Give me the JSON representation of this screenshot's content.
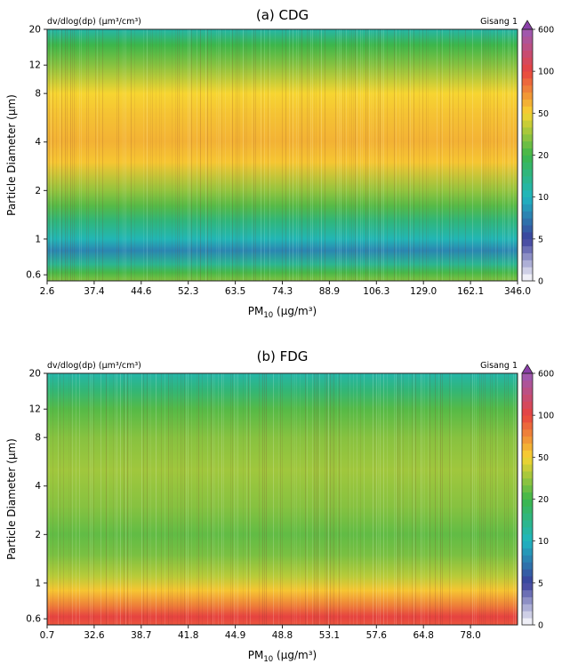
{
  "chart_data": [
    {
      "type": "heatmap",
      "title": "(a) CDG",
      "corner_label": "dv/dlog(dp) (μm³/cm³)",
      "station": "Gisang 1",
      "xlabel": "PM",
      "xlabel_sub": "10",
      "xlabel_units": " (μg/m³)",
      "ylabel": "Particle Diameter (μm)",
      "x_ticks": [
        "2.6",
        "37.4",
        "44.6",
        "52.3",
        "63.5",
        "74.3",
        "88.9",
        "106.3",
        "129.0",
        "162.1",
        "346.0"
      ],
      "y_ticks": [
        20,
        12,
        8,
        4,
        2,
        1,
        0.6
      ],
      "y_scale": "log",
      "ylim": [
        0.55,
        20
      ],
      "colorbar": {
        "ticks": [
          0,
          5,
          10,
          20,
          50,
          100,
          600
        ],
        "extend": "max",
        "colors": [
          "#ffffff",
          "#3b3f9c",
          "#1fb6c1",
          "#3cb64a",
          "#f7d531",
          "#e8433e",
          "#9b59b6",
          "#8a3fa8"
        ]
      },
      "profile": [
        {
          "diameter": 0.56,
          "level": 30
        },
        {
          "diameter": 0.62,
          "level": 22
        },
        {
          "diameter": 0.7,
          "level": 14
        },
        {
          "diameter": 0.85,
          "level": 8
        },
        {
          "diameter": 1.0,
          "level": 11
        },
        {
          "diameter": 1.3,
          "level": 16
        },
        {
          "diameter": 1.6,
          "level": 24
        },
        {
          "diameter": 2.0,
          "level": 34
        },
        {
          "diameter": 3.0,
          "level": 55
        },
        {
          "diameter": 4.0,
          "level": 62
        },
        {
          "diameter": 6.0,
          "level": 56
        },
        {
          "diameter": 8.0,
          "level": 50
        },
        {
          "diameter": 12.0,
          "level": 32
        },
        {
          "diameter": 16.0,
          "level": 20
        },
        {
          "diameter": 20.0,
          "level": 12
        }
      ]
    },
    {
      "type": "heatmap",
      "title": "(b) FDG",
      "corner_label": "dv/dlog(dp) (μm³/cm³)",
      "station": "Gisang 1",
      "xlabel": "PM",
      "xlabel_sub": "10",
      "xlabel_units": " (μg/m³)",
      "ylabel": "Particle Diameter (μm)",
      "x_ticks": [
        "0.7",
        "32.6",
        "38.7",
        "41.8",
        "44.9",
        "48.8",
        "53.1",
        "57.6",
        "64.8",
        "78.0"
      ],
      "y_ticks": [
        20,
        12,
        8,
        4,
        2,
        1,
        0.6
      ],
      "y_scale": "log",
      "ylim": [
        0.55,
        20
      ],
      "colorbar": {
        "ticks": [
          0,
          5,
          10,
          20,
          50,
          100,
          600
        ],
        "extend": "max",
        "colors": [
          "#ffffff",
          "#3b3f9c",
          "#1fb6c1",
          "#3cb64a",
          "#f7d531",
          "#e8433e",
          "#9b59b6",
          "#8a3fa8"
        ]
      },
      "profile": [
        {
          "diameter": 0.56,
          "level": 95
        },
        {
          "diameter": 0.62,
          "level": 110
        },
        {
          "diameter": 0.72,
          "level": 80
        },
        {
          "diameter": 0.9,
          "level": 55
        },
        {
          "diameter": 1.1,
          "level": 40
        },
        {
          "diameter": 1.5,
          "level": 30
        },
        {
          "diameter": 2.0,
          "level": 26
        },
        {
          "diameter": 3.0,
          "level": 32
        },
        {
          "diameter": 5.0,
          "level": 36
        },
        {
          "diameter": 8.0,
          "level": 32
        },
        {
          "diameter": 12.0,
          "level": 24
        },
        {
          "diameter": 16.0,
          "level": 16
        },
        {
          "diameter": 20.0,
          "level": 12
        }
      ]
    }
  ]
}
